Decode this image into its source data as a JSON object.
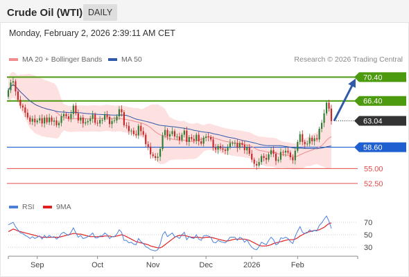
{
  "header": {
    "title": "Crude Oil (WTI)",
    "period": "DAILY"
  },
  "datetime": "Monday, February 2, 2026 2:39:11 AM CET",
  "credit": "Research © 2026 Trading Central",
  "legend": {
    "ma20": {
      "label": "MA 20 + Bollinger Bands",
      "color": "#f28b8b"
    },
    "ma50": {
      "label": "MA 50",
      "color": "#2e5aa8"
    },
    "rsi": {
      "label": "RSI",
      "color": "#4a7fdc"
    },
    "ma9": {
      "label": "9MA",
      "color": "#e02020"
    }
  },
  "chart_data": [
    {
      "type": "candlestick",
      "x_labels": [
        "Sep",
        "Oct",
        "Nov",
        "Dec",
        "2026",
        "Feb"
      ],
      "ylim": [
        50.5,
        72.2
      ],
      "levels": [
        {
          "label": "70.40",
          "value": 70.4,
          "kind": "resistance",
          "color": "#4c9a0e"
        },
        {
          "label": "66.40",
          "value": 66.4,
          "kind": "resistance",
          "color": "#4c9a0e"
        },
        {
          "label": "63.04",
          "value": 63.04,
          "kind": "last",
          "color": "#333333"
        },
        {
          "label": "58.60",
          "value": 58.6,
          "kind": "pivot",
          "color": "#1f5fcf"
        },
        {
          "label": "55.00",
          "value": 55.0,
          "kind": "support",
          "color": "#e44b4b"
        },
        {
          "label": "52.50",
          "value": 52.5,
          "kind": "support",
          "color": "#e44b4b"
        }
      ],
      "target_arrow": {
        "from": 63.04,
        "to": 70.4,
        "color": "#2e5aa8"
      },
      "close": [
        68.2,
        69.5,
        69.7,
        68.0,
        66.6,
        65.6,
        65.3,
        64.4,
        63.6,
        62.9,
        63.4,
        62.8,
        63.1,
        63.5,
        62.6,
        63.6,
        62.8,
        63.6,
        62.9,
        63.1,
        62.3,
        62.7,
        63.8,
        64.2,
        63.8,
        63.4,
        64.2,
        65.6,
        64.3,
        63.1,
        63.6,
        62.6,
        62.8,
        63.0,
        63.4,
        64.1,
        62.7,
        62.6,
        63.2,
        63.2,
        64.1,
        63.7,
        62.5,
        63.0,
        63.1,
        63.8,
        65.0,
        64.5,
        62.3,
        62.2,
        61.3,
        61.4,
        60.8,
        60.6,
        62.2,
        61.3,
        60.7,
        59.1,
        58.7,
        57.4,
        57.1,
        56.8,
        57.0,
        58.3,
        60.6,
        61.5,
        60.4,
        60.8,
        61.3,
        60.4,
        60.4,
        59.8,
        60.7,
        61.4,
        59.5,
        60.3,
        60.0,
        59.7,
        60.7,
        59.6,
        59.2,
        60.2,
        60.4,
        60.3,
        59.9,
        58.5,
        58.2,
        58.8,
        58.4,
        58.2,
        58.0,
        58.6,
        59.3,
        59.3,
        59.3,
        58.5,
        59.3,
        59.0,
        58.1,
        58.6,
        57.5,
        56.5,
        55.8,
        55.5,
        56.1,
        57.1,
        56.8,
        56.5,
        57.4,
        58.1,
        57.5,
        56.3,
        56.5,
        57.8,
        57.7,
        58.0,
        57.7,
        56.9,
        56.4,
        58.0,
        59.5,
        60.8,
        59.5,
        59.1,
        59.2,
        60.2,
        59.6,
        60.1,
        59.9,
        61.7,
        62.7,
        64.3,
        66.1,
        65.1,
        63.0
      ],
      "open": [
        67.1,
        68.2,
        69.5,
        69.7,
        68.0,
        66.6,
        65.6,
        65.3,
        64.4,
        63.6,
        62.9,
        63.4,
        62.8,
        63.1,
        63.5,
        62.6,
        63.6,
        62.8,
        63.6,
        62.9,
        63.1,
        62.3,
        62.7,
        63.8,
        64.2,
        63.8,
        63.4,
        64.2,
        65.6,
        64.3,
        63.1,
        63.6,
        62.6,
        62.8,
        63.0,
        63.4,
        64.1,
        62.7,
        62.6,
        63.2,
        63.2,
        64.1,
        63.7,
        62.5,
        63.0,
        63.1,
        63.8,
        65.0,
        64.5,
        62.3,
        62.2,
        61.3,
        61.4,
        60.8,
        60.6,
        62.2,
        61.3,
        60.7,
        59.1,
        58.7,
        57.4,
        57.1,
        56.8,
        57.0,
        58.3,
        60.6,
        61.5,
        60.4,
        60.8,
        61.3,
        60.4,
        60.4,
        59.8,
        60.7,
        61.4,
        59.5,
        60.3,
        60.0,
        59.7,
        60.7,
        59.6,
        59.2,
        60.2,
        60.4,
        60.3,
        59.9,
        58.5,
        58.2,
        58.8,
        58.4,
        58.2,
        58.0,
        58.6,
        59.3,
        59.3,
        59.3,
        58.5,
        59.3,
        59.0,
        58.1,
        58.6,
        57.5,
        56.5,
        55.8,
        55.5,
        56.1,
        57.1,
        56.8,
        56.5,
        57.4,
        58.1,
        57.5,
        56.3,
        56.5,
        57.8,
        57.7,
        58.0,
        57.7,
        56.9,
        56.4,
        58.0,
        59.5,
        60.8,
        59.5,
        59.1,
        59.2,
        60.2,
        59.6,
        60.1,
        59.9,
        61.7,
        62.7,
        64.3,
        66.1,
        65.1
      ]
    },
    {
      "type": "line",
      "title": "RSI",
      "yticks": [
        30,
        50,
        70
      ],
      "ylim": [
        20,
        80
      ],
      "rsi": [
        66,
        68,
        70,
        63,
        58,
        53,
        52,
        49,
        47,
        44,
        47,
        44,
        46,
        48,
        43,
        49,
        45,
        49,
        46,
        47,
        43,
        46,
        52,
        54,
        51,
        49,
        54,
        61,
        53,
        46,
        49,
        44,
        45,
        47,
        49,
        53,
        45,
        45,
        48,
        48,
        53,
        50,
        44,
        47,
        47,
        51,
        58,
        54,
        41,
        41,
        37,
        38,
        35,
        34,
        44,
        39,
        36,
        31,
        29,
        26,
        25,
        24,
        26,
        35,
        50,
        55,
        47,
        50,
        53,
        47,
        47,
        44,
        50,
        54,
        42,
        47,
        45,
        44,
        50,
        43,
        41,
        48,
        49,
        48,
        46,
        38,
        37,
        41,
        39,
        38,
        37,
        41,
        46,
        46,
        46,
        41,
        46,
        44,
        38,
        42,
        35,
        30,
        27,
        26,
        31,
        38,
        36,
        34,
        41,
        46,
        42,
        34,
        36,
        45,
        44,
        46,
        44,
        39,
        36,
        47,
        56,
        63,
        54,
        52,
        53,
        58,
        55,
        57,
        56,
        65,
        69,
        75,
        80,
        72,
        60
      ],
      "ma9": [
        55,
        57,
        59,
        58,
        56,
        55,
        54,
        53,
        52,
        51,
        50,
        49,
        48,
        47,
        46,
        46,
        46,
        46,
        46,
        46,
        46,
        46,
        47,
        48,
        49,
        50,
        51,
        52,
        52,
        51,
        51,
        50,
        49,
        48,
        47,
        47,
        47,
        47,
        47,
        47,
        48,
        48,
        48,
        47,
        47,
        48,
        49,
        50,
        49,
        47,
        45,
        43,
        41,
        39,
        38,
        37,
        36,
        35,
        34,
        32,
        31,
        30,
        29,
        29,
        31,
        34,
        37,
        40,
        43,
        46,
        48,
        49,
        49,
        49,
        48,
        47,
        46,
        46,
        46,
        46,
        45,
        45,
        46,
        46,
        46,
        45,
        44,
        43,
        42,
        41,
        40,
        40,
        41,
        42,
        43,
        43,
        43,
        43,
        43,
        42,
        41,
        39,
        37,
        35,
        33,
        32,
        32,
        32,
        33,
        34,
        36,
        37,
        38,
        39,
        40,
        41,
        42,
        42,
        42,
        43,
        45,
        48,
        50,
        52,
        54,
        55,
        56,
        57,
        57,
        58,
        60,
        62,
        65,
        68,
        69
      ]
    }
  ]
}
